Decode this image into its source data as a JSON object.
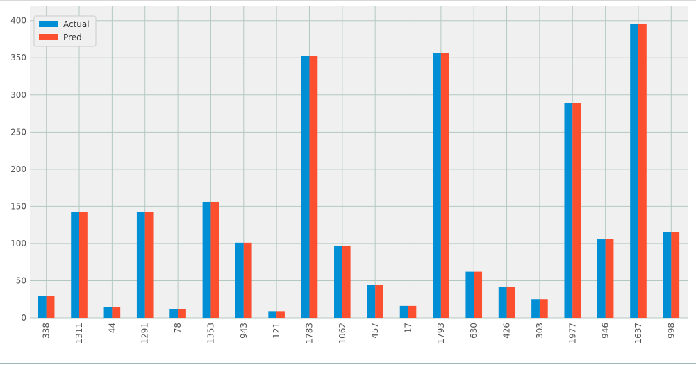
{
  "chart_data": {
    "type": "bar",
    "title": "",
    "xlabel": "",
    "ylabel": "",
    "categories": [
      "338",
      "1311",
      "44",
      "1291",
      "78",
      "1353",
      "943",
      "121",
      "1783",
      "1062",
      "457",
      "17",
      "1793",
      "630",
      "426",
      "303",
      "1977",
      "946",
      "1637",
      "998"
    ],
    "series": [
      {
        "name": "Actual",
        "color": "#008fd5",
        "values": [
          29,
          142,
          14,
          142,
          12,
          156,
          101,
          9,
          353,
          97,
          44,
          16,
          356,
          62,
          42,
          25,
          289,
          106,
          396,
          115
        ]
      },
      {
        "name": "Pred",
        "color": "#fc4f30",
        "values": [
          29,
          142,
          14,
          142,
          12,
          156,
          101,
          9,
          353,
          97,
          44,
          16,
          356,
          62,
          42,
          25,
          289,
          106,
          396,
          115
        ]
      }
    ],
    "ylim": [
      0,
      410
    ],
    "yticks": [
      0,
      50,
      100,
      150,
      200,
      250,
      300,
      350,
      400
    ],
    "grid": true,
    "legend_position": "top-left",
    "background_color": "#f0f0f0",
    "grid_color": "#b3c9c0"
  }
}
